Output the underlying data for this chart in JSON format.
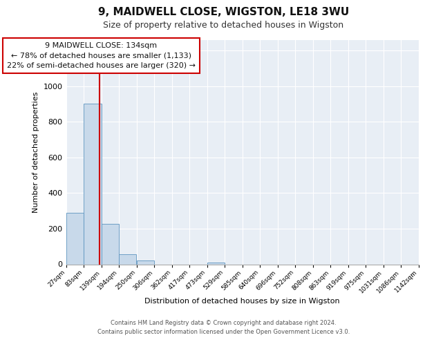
{
  "title": "9, MAIDWELL CLOSE, WIGSTON, LE18 3WU",
  "subtitle": "Size of property relative to detached houses in Wigston",
  "xlabel": "Distribution of detached houses by size in Wigston",
  "ylabel": "Number of detached properties",
  "bar_color": "#c8d9ea",
  "bar_edge_color": "#5c94bf",
  "background_color": "#e8eef5",
  "grid_color": "#ffffff",
  "bin_edges": [
    27,
    83,
    139,
    194,
    250,
    306,
    362,
    417,
    473,
    529,
    585,
    640,
    696,
    752,
    808,
    863,
    919,
    975,
    1031,
    1086,
    1142
  ],
  "bar_heights": [
    290,
    900,
    225,
    55,
    20,
    0,
    0,
    0,
    10,
    0,
    0,
    0,
    0,
    0,
    0,
    0,
    0,
    0,
    0,
    0
  ],
  "property_size": 134,
  "red_line_color": "#cc0000",
  "annotation_line1": "9 MAIDWELL CLOSE: 134sqm",
  "annotation_line2": "← 78% of detached houses are smaller (1,133)",
  "annotation_line3": "22% of semi-detached houses are larger (320) →",
  "ylim_max": 1260,
  "yticks": [
    0,
    200,
    400,
    600,
    800,
    1000,
    1200
  ],
  "footer_line1": "Contains HM Land Registry data © Crown copyright and database right 2024.",
  "footer_line2": "Contains public sector information licensed under the Open Government Licence v3.0."
}
